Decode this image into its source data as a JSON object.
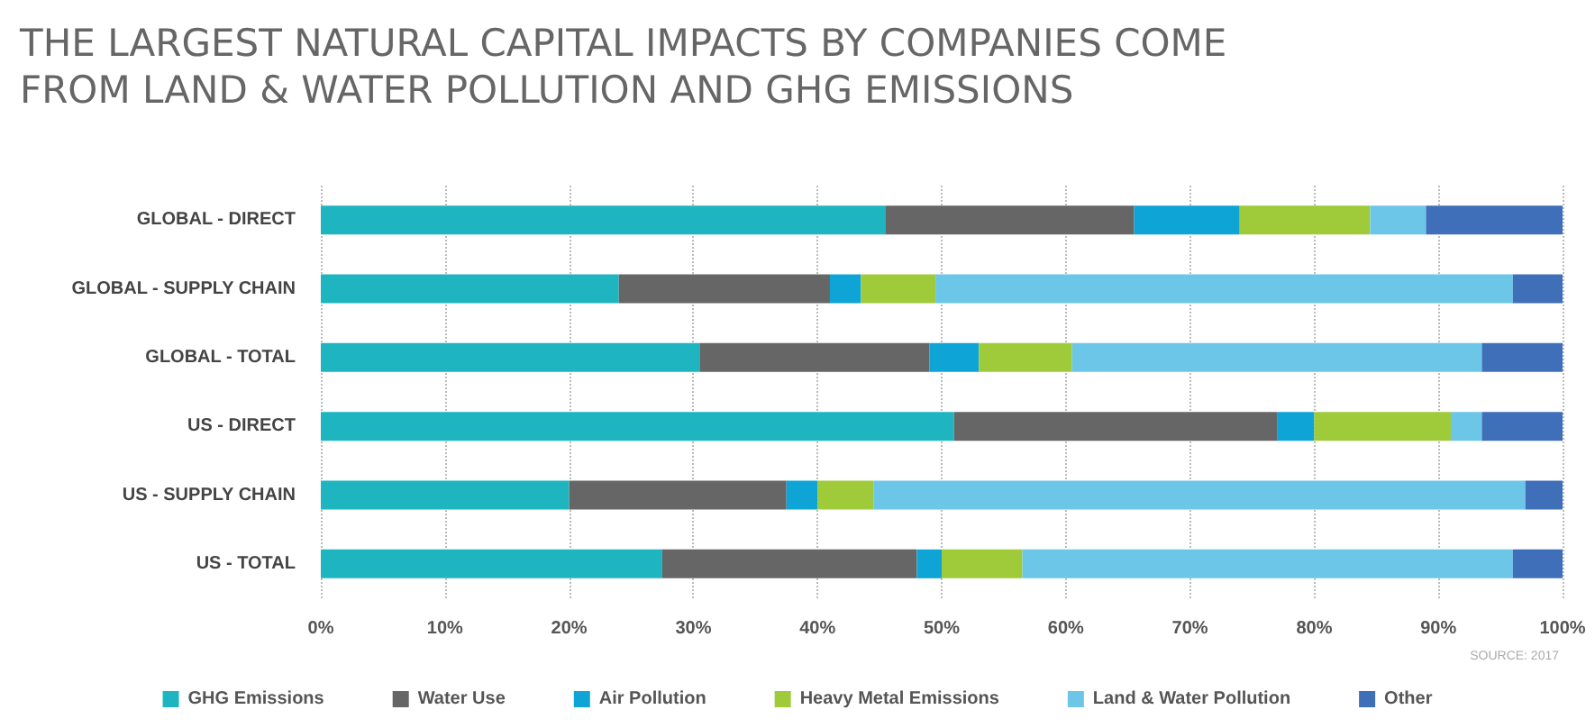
{
  "chart_data": {
    "type": "bar",
    "orientation": "horizontal",
    "stacked": true,
    "title": "THE LARGEST NATURAL CAPITAL IMPACTS BY COMPANIES COME\nFROM LAND & WATER POLLUTION AND GHG EMISSIONS",
    "categories": [
      "GLOBAL - DIRECT",
      "GLOBAL - SUPPLY CHAIN",
      "GLOBAL - TOTAL",
      "US - DIRECT",
      "US - SUPPLY CHAIN",
      "US - TOTAL"
    ],
    "series": [
      {
        "name": "GHG Emissions",
        "color": "#1fb5c0",
        "values": [
          45.5,
          24,
          30.5,
          51,
          20,
          27.5
        ]
      },
      {
        "name": "Water Use",
        "color": "#666666",
        "values": [
          20,
          17,
          18.5,
          26,
          17.5,
          20.5
        ]
      },
      {
        "name": "Air Pollution",
        "color": "#0ea5d6",
        "values": [
          8.5,
          2.5,
          4,
          3,
          2.5,
          2
        ]
      },
      {
        "name": "Heavy Metal Emissions",
        "color": "#9fcb3a",
        "values": [
          10.5,
          6,
          7.5,
          11,
          4.5,
          6.5
        ]
      },
      {
        "name": "Land & Water Pollution",
        "color": "#6cc6e8",
        "values": [
          4.5,
          46.5,
          33,
          2.5,
          52.5,
          39.5
        ]
      },
      {
        "name": "Other",
        "color": "#3f6fb8",
        "values": [
          11,
          4,
          6.5,
          6.5,
          3,
          4
        ]
      }
    ],
    "xlim": [
      0,
      100
    ],
    "xticks": [
      {
        "value": 0,
        "label": "0%"
      },
      {
        "value": 10,
        "label": "10%"
      },
      {
        "value": 20,
        "label": "20%"
      },
      {
        "value": 30,
        "label": "30%"
      },
      {
        "value": 40,
        "label": "40%"
      },
      {
        "value": 50,
        "label": "50%"
      },
      {
        "value": 60,
        "label": "60%"
      },
      {
        "value": 70,
        "label": "70%"
      },
      {
        "value": 80,
        "label": "80%"
      },
      {
        "value": 90,
        "label": "90%"
      },
      {
        "value": 100,
        "label": "100%"
      }
    ],
    "grid": "x",
    "legend": "bottom",
    "annotations": [
      "SOURCE: 2017"
    ]
  }
}
